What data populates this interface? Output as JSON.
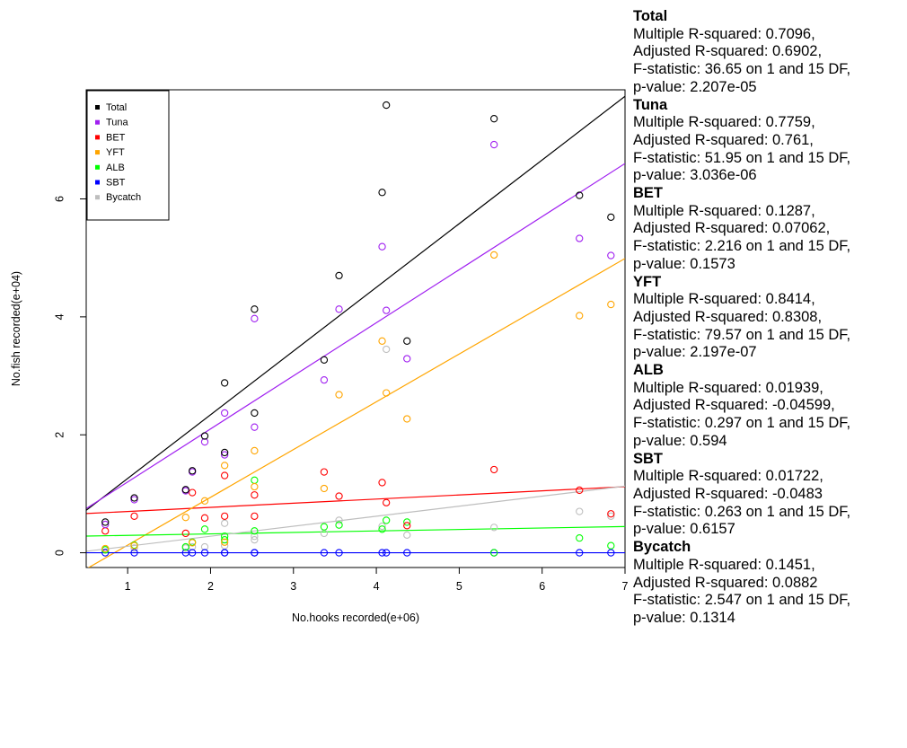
{
  "chart_data": {
    "type": "scatter",
    "xlabel": "No.hooks recorded(e+06)",
    "ylabel": "No.fish recorded(e+04)",
    "xlim": [
      0.5,
      7.0
    ],
    "ylim": [
      -0.25,
      7.85
    ],
    "x_ticks": [
      1,
      2,
      3,
      4,
      5,
      6,
      7
    ],
    "y_ticks": [
      0,
      2,
      4,
      6
    ],
    "legend_position": "top-left",
    "grid": false,
    "series": [
      {
        "name": "Total",
        "color": "#000000",
        "points": [
          [
            0.73,
            0.52
          ],
          [
            1.08,
            0.93
          ],
          [
            1.7,
            1.07
          ],
          [
            1.78,
            1.39
          ],
          [
            1.93,
            1.98
          ],
          [
            2.17,
            2.88
          ],
          [
            2.17,
            1.7
          ],
          [
            2.53,
            4.13
          ],
          [
            2.53,
            2.37
          ],
          [
            3.37,
            3.27
          ],
          [
            3.55,
            4.7
          ],
          [
            4.07,
            6.11
          ],
          [
            4.12,
            7.59
          ],
          [
            4.37,
            3.59
          ],
          [
            5.42,
            7.36
          ],
          [
            6.45,
            6.06
          ],
          [
            6.83,
            5.69
          ]
        ],
        "fit": {
          "intercept": 0.18,
          "slope": 1.08
        }
      },
      {
        "name": "Tuna",
        "color": "#a020f0",
        "points": [
          [
            0.73,
            0.48
          ],
          [
            1.08,
            0.9
          ],
          [
            1.7,
            1.05
          ],
          [
            1.78,
            1.37
          ],
          [
            1.93,
            1.88
          ],
          [
            2.17,
            2.37
          ],
          [
            2.17,
            1.66
          ],
          [
            2.53,
            3.97
          ],
          [
            2.53,
            2.13
          ],
          [
            3.37,
            2.93
          ],
          [
            3.55,
            4.13
          ],
          [
            4.07,
            5.19
          ],
          [
            4.12,
            4.11
          ],
          [
            4.37,
            3.29
          ],
          [
            5.42,
            6.92
          ],
          [
            6.45,
            5.33
          ],
          [
            6.83,
            5.04
          ]
        ],
        "fit": {
          "intercept": 0.3,
          "slope": 0.9
        }
      },
      {
        "name": "BET",
        "color": "#ff0000",
        "points": [
          [
            0.73,
            0.37
          ],
          [
            1.08,
            0.62
          ],
          [
            1.7,
            0.33
          ],
          [
            1.78,
            1.02
          ],
          [
            1.93,
            0.59
          ],
          [
            2.17,
            1.31
          ],
          [
            2.17,
            0.62
          ],
          [
            2.53,
            0.98
          ],
          [
            2.53,
            0.62
          ],
          [
            3.37,
            1.37
          ],
          [
            3.55,
            0.96
          ],
          [
            4.07,
            1.19
          ],
          [
            4.12,
            0.85
          ],
          [
            4.37,
            0.46
          ],
          [
            5.42,
            1.41
          ],
          [
            6.45,
            1.06
          ],
          [
            6.83,
            0.66
          ]
        ],
        "fit": {
          "intercept": 0.63,
          "slope": 0.07
        }
      },
      {
        "name": "YFT",
        "color": "#ffa500",
        "points": [
          [
            0.73,
            0.07
          ],
          [
            1.08,
            0.12
          ],
          [
            1.7,
            0.6
          ],
          [
            1.78,
            0.17
          ],
          [
            1.93,
            0.88
          ],
          [
            2.17,
            1.48
          ],
          [
            2.17,
            0.18
          ],
          [
            2.53,
            1.73
          ],
          [
            2.53,
            1.12
          ],
          [
            3.37,
            1.09
          ],
          [
            3.55,
            2.68
          ],
          [
            4.07,
            3.59
          ],
          [
            4.12,
            2.71
          ],
          [
            4.37,
            2.27
          ],
          [
            5.42,
            5.05
          ],
          [
            6.45,
            4.02
          ],
          [
            6.83,
            4.21
          ]
        ],
        "fit": {
          "intercept": -0.68,
          "slope": 0.81
        }
      },
      {
        "name": "ALB",
        "color": "#00ff00",
        "points": [
          [
            0.73,
            0.05
          ],
          [
            1.08,
            0.13
          ],
          [
            1.7,
            0.1
          ],
          [
            1.78,
            0.18
          ],
          [
            1.93,
            0.4
          ],
          [
            2.17,
            0.22
          ],
          [
            2.17,
            0.28
          ],
          [
            2.53,
            1.23
          ],
          [
            2.53,
            0.37
          ],
          [
            3.37,
            0.44
          ],
          [
            3.55,
            0.47
          ],
          [
            4.07,
            0.4
          ],
          [
            4.12,
            0.55
          ],
          [
            4.37,
            0.52
          ],
          [
            5.42,
            0.0
          ],
          [
            6.45,
            0.25
          ],
          [
            6.83,
            0.12
          ]
        ],
        "fit": {
          "intercept": 0.27,
          "slope": 0.025
        }
      },
      {
        "name": "SBT",
        "color": "#0000ff",
        "points": [
          [
            0.73,
            0.0
          ],
          [
            1.08,
            0.0
          ],
          [
            1.7,
            0.0
          ],
          [
            1.78,
            0.0
          ],
          [
            1.93,
            0.0
          ],
          [
            2.17,
            0.0
          ],
          [
            2.17,
            0.0
          ],
          [
            2.53,
            0.0
          ],
          [
            2.53,
            0.0
          ],
          [
            3.37,
            0.0
          ],
          [
            3.55,
            0.0
          ],
          [
            4.07,
            0.0
          ],
          [
            4.12,
            0.0
          ],
          [
            4.37,
            0.0
          ],
          [
            5.42,
            0.0
          ],
          [
            6.45,
            0.0
          ],
          [
            6.83,
            0.0
          ]
        ],
        "fit": {
          "intercept": 0.0,
          "slope": 0.0
        }
      },
      {
        "name": "Bycatch",
        "color": "#bebebe",
        "points": [
          [
            0.73,
            0.05
          ],
          [
            1.08,
            0.08
          ],
          [
            1.7,
            0.08
          ],
          [
            1.78,
            0.1
          ],
          [
            1.93,
            0.1
          ],
          [
            2.17,
            0.5
          ],
          [
            2.17,
            0.12
          ],
          [
            2.53,
            0.22
          ],
          [
            2.53,
            0.28
          ],
          [
            3.37,
            0.33
          ],
          [
            3.55,
            0.55
          ],
          [
            4.07,
            0.45
          ],
          [
            4.12,
            3.45
          ],
          [
            4.37,
            0.3
          ],
          [
            5.42,
            0.43
          ],
          [
            6.45,
            0.7
          ],
          [
            6.83,
            0.62
          ]
        ],
        "fit": {
          "intercept": -0.06,
          "slope": 0.17
        }
      }
    ],
    "stats": [
      {
        "name": "Total",
        "r2": "Multiple R-squared: 0.7096,",
        "adj": "Adjusted R-squared: 0.6902,",
        "f": "F-statistic: 36.65 on 1 and 15 DF,",
        "p": "p-value: 2.207e-05"
      },
      {
        "name": "Tuna",
        "r2": "Multiple R-squared: 0.7759,",
        "adj": "Adjusted R-squared: 0.761,",
        "f": "F-statistic: 51.95 on 1 and 15 DF,",
        "p": "p-value: 3.036e-06"
      },
      {
        "name": "BET",
        "r2": "Multiple R-squared: 0.1287,",
        "adj": "Adjusted R-squared: 0.07062,",
        "f": "F-statistic: 2.216 on 1 and 15 DF,",
        "p": "p-value: 0.1573"
      },
      {
        "name": "YFT",
        "r2": "Multiple R-squared: 0.8414,",
        "adj": "Adjusted R-squared: 0.8308,",
        "f": "F-statistic: 79.57 on 1 and 15 DF,",
        "p": "p-value: 2.197e-07"
      },
      {
        "name": "ALB",
        "r2": "Multiple R-squared: 0.01939,",
        "adj": "Adjusted R-squared: -0.04599,",
        "f": "F-statistic: 0.297 on 1 and 15 DF,",
        "p": "p-value: 0.594"
      },
      {
        "name": "SBT",
        "r2": "Multiple R-squared: 0.01722,",
        "adj": "Adjusted R-squared: -0.0483",
        "f": "F-statistic: 0.263 on 1 and 15 DF,",
        "p": "p-value: 0.6157"
      },
      {
        "name": "Bycatch",
        "r2": "Multiple R-squared: 0.1451,",
        "adj": "Adjusted R-squared: 0.0882",
        "f": "F-statistic: 2.547 on 1 and 15 DF,",
        "p": "p-value: 0.1314"
      }
    ]
  }
}
